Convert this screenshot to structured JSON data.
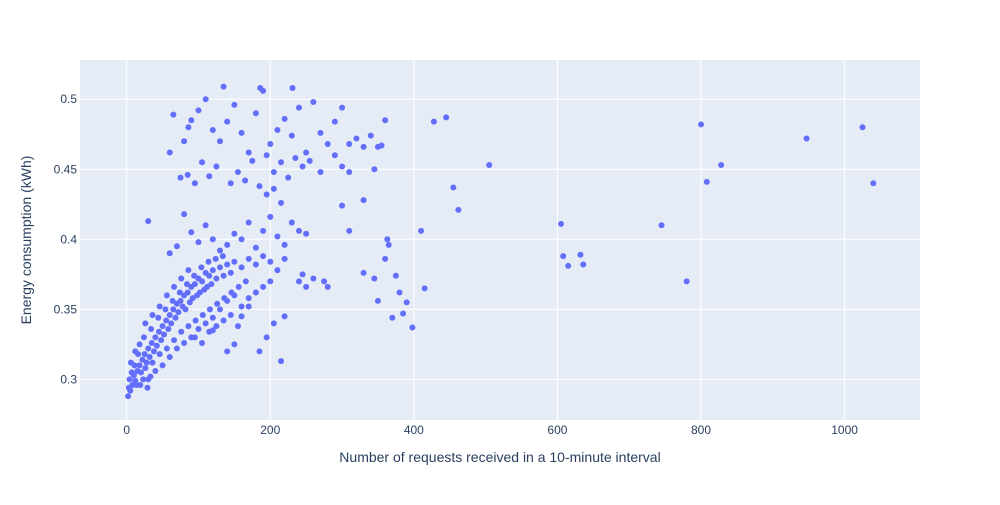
{
  "chart_data": {
    "type": "scatter",
    "title": "",
    "xlabel": "Number of requests received in a 10-minute interval",
    "ylabel": "Energy consumption (kWh)",
    "xlim": [
      -65,
      1105
    ],
    "ylim": [
      0.271,
      0.528
    ],
    "x_ticks": [
      0,
      200,
      400,
      600,
      800,
      1000
    ],
    "x_tick_labels": [
      "0",
      "200",
      "400",
      "600",
      "800",
      "1000"
    ],
    "y_ticks": [
      0.3,
      0.35,
      0.4,
      0.45,
      0.5
    ],
    "y_tick_labels": [
      "0.3",
      "0.35",
      "0.4",
      "0.45",
      "0.5"
    ],
    "grid": true,
    "legend": "none",
    "colors": {
      "marker": "#636efa",
      "plot_bg": "#e5ecf6",
      "grid": "#ffffff",
      "text": "#2a3f5f"
    },
    "series": [
      {
        "values": [
          [
            2,
            0.288
          ],
          [
            5,
            0.292
          ],
          [
            8,
            0.296
          ],
          [
            4,
            0.3
          ],
          [
            10,
            0.303
          ],
          [
            12,
            0.299
          ],
          [
            15,
            0.306
          ],
          [
            18,
            0.31
          ],
          [
            20,
            0.305
          ],
          [
            22,
            0.314
          ],
          [
            25,
            0.318
          ],
          [
            28,
            0.312
          ],
          [
            30,
            0.322
          ],
          [
            32,
            0.316
          ],
          [
            35,
            0.326
          ],
          [
            38,
            0.32
          ],
          [
            40,
            0.33
          ],
          [
            42,
            0.324
          ],
          [
            45,
            0.334
          ],
          [
            48,
            0.328
          ],
          [
            50,
            0.338
          ],
          [
            52,
            0.332
          ],
          [
            55,
            0.342
          ],
          [
            58,
            0.336
          ],
          [
            60,
            0.346
          ],
          [
            62,
            0.34
          ],
          [
            65,
            0.35
          ],
          [
            68,
            0.344
          ],
          [
            70,
            0.354
          ],
          [
            72,
            0.348
          ],
          [
            75,
            0.356
          ],
          [
            78,
            0.352
          ],
          [
            80,
            0.36
          ],
          [
            82,
            0.35
          ],
          [
            85,
            0.362
          ],
          [
            88,
            0.355
          ],
          [
            90,
            0.366
          ],
          [
            92,
            0.358
          ],
          [
            95,
            0.368
          ],
          [
            98,
            0.36
          ],
          [
            100,
            0.372
          ],
          [
            102,
            0.362
          ],
          [
            105,
            0.37
          ],
          [
            108,
            0.364
          ],
          [
            110,
            0.376
          ],
          [
            112,
            0.366
          ],
          [
            115,
            0.374
          ],
          [
            118,
            0.368
          ],
          [
            120,
            0.378
          ],
          [
            125,
            0.372
          ],
          [
            130,
            0.38
          ],
          [
            135,
            0.374
          ],
          [
            140,
            0.382
          ],
          [
            145,
            0.376
          ],
          [
            150,
            0.384
          ],
          [
            160,
            0.38
          ],
          [
            170,
            0.386
          ],
          [
            180,
            0.382
          ],
          [
            190,
            0.388
          ],
          [
            200,
            0.384
          ],
          [
            210,
            0.378
          ],
          [
            220,
            0.386
          ],
          [
            14,
            0.296
          ],
          [
            26,
            0.308
          ],
          [
            36,
            0.312
          ],
          [
            46,
            0.318
          ],
          [
            56,
            0.322
          ],
          [
            66,
            0.328
          ],
          [
            76,
            0.334
          ],
          [
            86,
            0.338
          ],
          [
            96,
            0.342
          ],
          [
            106,
            0.346
          ],
          [
            116,
            0.35
          ],
          [
            126,
            0.354
          ],
          [
            136,
            0.358
          ],
          [
            146,
            0.362
          ],
          [
            156,
            0.366
          ],
          [
            166,
            0.37
          ],
          [
            24,
            0.33
          ],
          [
            34,
            0.336
          ],
          [
            44,
            0.344
          ],
          [
            54,
            0.35
          ],
          [
            64,
            0.356
          ],
          [
            74,
            0.362
          ],
          [
            84,
            0.368
          ],
          [
            94,
            0.374
          ],
          [
            104,
            0.38
          ],
          [
            114,
            0.384
          ],
          [
            124,
            0.386
          ],
          [
            134,
            0.388
          ],
          [
            12,
            0.32
          ],
          [
            18,
            0.325
          ],
          [
            30,
            0.3
          ],
          [
            40,
            0.306
          ],
          [
            50,
            0.31
          ],
          [
            60,
            0.316
          ],
          [
            70,
            0.322
          ],
          [
            80,
            0.326
          ],
          [
            90,
            0.33
          ],
          [
            100,
            0.336
          ],
          [
            110,
            0.34
          ],
          [
            120,
            0.344
          ],
          [
            6,
            0.312
          ],
          [
            16,
            0.318
          ],
          [
            26,
            0.34
          ],
          [
            36,
            0.346
          ],
          [
            46,
            0.352
          ],
          [
            56,
            0.36
          ],
          [
            66,
            0.366
          ],
          [
            76,
            0.372
          ],
          [
            86,
            0.378
          ],
          [
            3,
            0.294
          ],
          [
            7,
            0.305
          ],
          [
            11,
            0.31
          ],
          [
            19,
            0.296
          ],
          [
            23,
            0.3
          ],
          [
            29,
            0.294
          ],
          [
            33,
            0.302
          ],
          [
            130,
            0.35
          ],
          [
            140,
            0.356
          ],
          [
            150,
            0.36
          ],
          [
            160,
            0.352
          ],
          [
            170,
            0.358
          ],
          [
            180,
            0.362
          ],
          [
            190,
            0.366
          ],
          [
            200,
            0.37
          ],
          [
            95,
            0.33
          ],
          [
            105,
            0.326
          ],
          [
            115,
            0.334
          ],
          [
            125,
            0.338
          ],
          [
            135,
            0.342
          ],
          [
            145,
            0.346
          ],
          [
            155,
            0.338
          ],
          [
            30,
            0.413
          ],
          [
            80,
            0.418
          ],
          [
            90,
            0.405
          ],
          [
            100,
            0.398
          ],
          [
            110,
            0.41
          ],
          [
            120,
            0.4
          ],
          [
            130,
            0.392
          ],
          [
            140,
            0.396
          ],
          [
            150,
            0.404
          ],
          [
            160,
            0.4
          ],
          [
            170,
            0.412
          ],
          [
            180,
            0.394
          ],
          [
            190,
            0.406
          ],
          [
            200,
            0.416
          ],
          [
            210,
            0.402
          ],
          [
            220,
            0.396
          ],
          [
            230,
            0.412
          ],
          [
            240,
            0.406
          ],
          [
            250,
            0.404
          ],
          [
            70,
            0.395
          ],
          [
            60,
            0.39
          ],
          [
            60,
            0.462
          ],
          [
            80,
            0.47
          ],
          [
            90,
            0.485
          ],
          [
            100,
            0.492
          ],
          [
            110,
            0.5
          ],
          [
            120,
            0.478
          ],
          [
            130,
            0.47
          ],
          [
            140,
            0.484
          ],
          [
            150,
            0.496
          ],
          [
            160,
            0.476
          ],
          [
            170,
            0.462
          ],
          [
            180,
            0.49
          ],
          [
            190,
            0.506
          ],
          [
            200,
            0.468
          ],
          [
            210,
            0.478
          ],
          [
            220,
            0.486
          ],
          [
            230,
            0.474
          ],
          [
            240,
            0.494
          ],
          [
            250,
            0.462
          ],
          [
            260,
            0.498
          ],
          [
            270,
            0.476
          ],
          [
            280,
            0.468
          ],
          [
            290,
            0.484
          ],
          [
            300,
            0.494
          ],
          [
            310,
            0.468
          ],
          [
            320,
            0.472
          ],
          [
            330,
            0.466
          ],
          [
            340,
            0.474
          ],
          [
            350,
            0.466
          ],
          [
            135,
            0.509
          ],
          [
            186,
            0.508
          ],
          [
            231,
            0.508
          ],
          [
            65,
            0.489
          ],
          [
            86,
            0.48
          ],
          [
            105,
            0.455
          ],
          [
            115,
            0.445
          ],
          [
            125,
            0.452
          ],
          [
            145,
            0.44
          ],
          [
            155,
            0.448
          ],
          [
            165,
            0.442
          ],
          [
            175,
            0.456
          ],
          [
            195,
            0.46
          ],
          [
            205,
            0.448
          ],
          [
            215,
            0.455
          ],
          [
            225,
            0.444
          ],
          [
            235,
            0.458
          ],
          [
            245,
            0.452
          ],
          [
            255,
            0.456
          ],
          [
            270,
            0.448
          ],
          [
            290,
            0.46
          ],
          [
            300,
            0.452
          ],
          [
            310,
            0.448
          ],
          [
            330,
            0.428
          ],
          [
            345,
            0.45
          ],
          [
            360,
            0.485
          ],
          [
            355,
            0.467
          ],
          [
            75,
            0.444
          ],
          [
            85,
            0.446
          ],
          [
            95,
            0.44
          ],
          [
            185,
            0.438
          ],
          [
            195,
            0.432
          ],
          [
            205,
            0.436
          ],
          [
            215,
            0.426
          ],
          [
            300,
            0.424
          ],
          [
            310,
            0.406
          ],
          [
            330,
            0.376
          ],
          [
            345,
            0.372
          ],
          [
            350,
            0.356
          ],
          [
            360,
            0.386
          ],
          [
            363,
            0.4
          ],
          [
            365,
            0.396
          ],
          [
            370,
            0.344
          ],
          [
            375,
            0.374
          ],
          [
            380,
            0.362
          ],
          [
            385,
            0.347
          ],
          [
            390,
            0.355
          ],
          [
            398,
            0.337
          ],
          [
            410,
            0.406
          ],
          [
            415,
            0.365
          ],
          [
            428,
            0.484
          ],
          [
            445,
            0.487
          ],
          [
            455,
            0.437
          ],
          [
            462,
            0.421
          ],
          [
            505,
            0.453
          ],
          [
            605,
            0.411
          ],
          [
            608,
            0.388
          ],
          [
            615,
            0.381
          ],
          [
            632,
            0.389
          ],
          [
            636,
            0.382
          ],
          [
            745,
            0.41
          ],
          [
            780,
            0.37
          ],
          [
            800,
            0.482
          ],
          [
            808,
            0.441
          ],
          [
            828,
            0.453
          ],
          [
            947,
            0.472
          ],
          [
            1025,
            0.48
          ],
          [
            1040,
            0.44
          ],
          [
            220,
            0.345
          ],
          [
            215,
            0.313
          ],
          [
            185,
            0.32
          ],
          [
            160,
            0.345
          ],
          [
            170,
            0.352
          ],
          [
            150,
            0.325
          ],
          [
            140,
            0.32
          ],
          [
            120,
            0.335
          ],
          [
            245,
            0.375
          ],
          [
            260,
            0.372
          ],
          [
            250,
            0.366
          ],
          [
            240,
            0.37
          ],
          [
            280,
            0.366
          ],
          [
            275,
            0.37
          ],
          [
            205,
            0.34
          ],
          [
            195,
            0.33
          ]
        ]
      }
    ]
  }
}
